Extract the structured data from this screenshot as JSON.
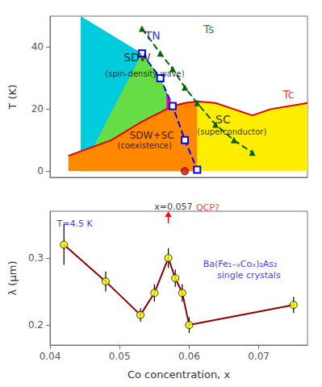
{
  "chart_data": [
    {
      "type": "line",
      "ylabel": "T (K)",
      "xlim": [
        0.035,
        0.077
      ],
      "xticks": [],
      "ylim": [
        -2,
        50
      ],
      "yticks": [
        0,
        20,
        40
      ],
      "tick_labels": "y",
      "grid": false,
      "regions": [
        {
          "color": "#00CCDD",
          "x": [
            0.04,
            0.057,
            0.059,
            0.057,
            0.055,
            0.053,
            0.05,
            0.04
          ],
          "values": [
            0,
            0,
            0.5,
            10.0,
            21.0,
            30.0,
            38.0,
            50
          ]
        },
        {
          "color": "#FFEE00",
          "x": [
            0.057,
            0.057,
            0.059,
            0.062,
            0.065,
            0.068,
            0.071,
            0.077,
            0.077
          ],
          "values": [
            0,
            22.0,
            22.5,
            22.0,
            20.0,
            18.0,
            20.0,
            22.0,
            0
          ]
        },
        {
          "color": "#66DD44",
          "x": [
            0.05,
            0.053,
            0.055,
            0.057,
            0.059,
            0.057,
            0.04
          ],
          "values": [
            38.0,
            30.0,
            21.0,
            10.0,
            0.5,
            0,
            0
          ]
        },
        {
          "color": "#FF8800",
          "x": [
            0.038,
            0.045,
            0.05,
            0.055,
            0.057,
            0.059,
            0.059,
            0.038
          ],
          "values": [
            5.0,
            10.0,
            16.0,
            21.0,
            22.0,
            22.5,
            0,
            0
          ]
        },
        {
          "color": "#FF00AA",
          "x": [
            0.054,
            0.055,
            0.054
          ],
          "values": [
            20.0,
            21.0,
            25.5
          ]
        }
      ],
      "series": [
        {
          "type": "line",
          "color": "#DD0000",
          "line_style": "solid",
          "marker": "none",
          "x": [
            0.038,
            0.045,
            0.05,
            0.055,
            0.057,
            0.059,
            0.062,
            0.065,
            0.068,
            0.071,
            0.077
          ],
          "values": [
            5.0,
            10.0,
            16.0,
            21.0,
            22.0,
            22.5,
            22.0,
            20.0,
            18.0,
            20.0,
            22.0
          ]
        },
        {
          "type": "line",
          "color": "blue",
          "line_style": "dashed",
          "marker": "open-square",
          "x": [
            0.05,
            0.053,
            0.055,
            0.057,
            0.059
          ],
          "values": [
            38.0,
            30.0,
            21.0,
            10.0,
            0.5
          ]
        },
        {
          "type": "line",
          "color": "darkgreen",
          "line_style": "dashed",
          "marker": "triangle",
          "x": [
            0.05,
            0.053,
            0.055,
            0.057,
            0.059,
            0.062,
            0.065,
            0.068
          ],
          "values": [
            46.0,
            38.0,
            33.0,
            27.0,
            22.0,
            15.0,
            10.0,
            6.0
          ]
        },
        {
          "type": "scatter",
          "color": "red",
          "marker": "circle",
          "x": [
            0.057
          ],
          "values": [
            0
          ]
        }
      ],
      "annotations": [
        {
          "text": "SDW",
          "x": 0.047,
          "y": 35,
          "color": "black"
        },
        {
          "text": "(spin-density wave)",
          "x": 0.044,
          "y": 30,
          "color": "black"
        },
        {
          "text": "SDW+SC",
          "x": 0.048,
          "y": 10,
          "color": "black"
        },
        {
          "text": "(coexistence)",
          "x": 0.046,
          "y": 7,
          "color": "black"
        },
        {
          "text": "SC",
          "x": 0.062,
          "y": 15,
          "color": "black"
        },
        {
          "text": "(superconductor)",
          "x": 0.059,
          "y": 11.5,
          "color": "black"
        },
        {
          "text": "Tc",
          "x": 0.073,
          "y": 23,
          "color": "#DD0000"
        },
        {
          "text": "TN",
          "x": 0.0505,
          "y": 42,
          "color": "#0000CC"
        },
        {
          "text": "Ts",
          "x": 0.06,
          "y": 44,
          "color": "#006600"
        }
      ]
    },
    {
      "type": "line",
      "xlabel": "Co concentration, x",
      "ylabel": "λ (μm)",
      "xlim": [
        0.04,
        0.077
      ],
      "xticks": [
        0.04,
        0.05,
        0.06,
        0.07
      ],
      "ylim": [
        0.17,
        0.37
      ],
      "yticks": [
        0.2,
        0.3
      ],
      "grid": false,
      "series": [
        {
          "type": "line",
          "color": "#8B0000",
          "line_style": "solid",
          "marker": "none",
          "x": [
            0.042,
            0.048,
            0.053,
            0.055,
            0.057,
            0.058,
            0.059,
            0.06,
            0.075
          ],
          "values": [
            0.32,
            0.265,
            0.215,
            0.248,
            0.3,
            0.27,
            0.248,
            0.2,
            0.23
          ]
        },
        {
          "type": "scatter",
          "color": "#FFFF00",
          "marker": "circle",
          "x": [
            0.042,
            0.048,
            0.053,
            0.055,
            0.057,
            0.058,
            0.059,
            0.06,
            0.075
          ],
          "values": [
            0.32,
            0.265,
            0.215,
            0.248,
            0.3,
            0.27,
            0.248,
            0.2,
            0.23
          ],
          "yerr": [
            0.03,
            0.015,
            0.01,
            0.013,
            0.015,
            0.013,
            0.013,
            0.012,
            0.012
          ]
        }
      ],
      "arrows": [
        {
          "x": 0.057,
          "y": [
            0.352,
            0.37
          ],
          "color": "red"
        }
      ],
      "annotations": [
        {
          "text": "T=4.5 K",
          "x": 0.041,
          "y": 0.345,
          "color": "blue"
        },
        {
          "text": "Ba(Fe₁₋ₓCoₓ)₂As₂",
          "x": 0.062,
          "y": 0.285,
          "color": "blue"
        },
        {
          "text": "single crystals",
          "x": 0.064,
          "y": 0.268,
          "color": "blue"
        },
        {
          "text": "x=0.057",
          "x": 0.055,
          "y": 0.37,
          "color": "black"
        },
        {
          "text": "QCP?",
          "x": 0.061,
          "y": 0.369,
          "color": "red"
        }
      ]
    }
  ]
}
